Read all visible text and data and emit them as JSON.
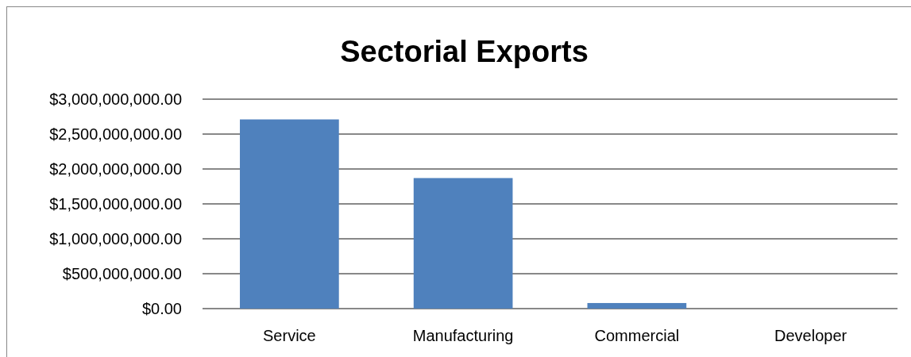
{
  "chart_data": {
    "type": "bar",
    "title": "Sectorial Exports",
    "categories": [
      "Service",
      "Manufacturing",
      "Commercial",
      "Developer"
    ],
    "values": [
      2710000000,
      1870000000,
      80000000,
      0
    ],
    "color": "#4f81bd",
    "ylim": [
      0,
      3000000000
    ],
    "yticks": [
      {
        "value": 0,
        "label": "$0.00"
      },
      {
        "value": 500000000,
        "label": "$500,000,000.00"
      },
      {
        "value": 1000000000,
        "label": "$1,000,000,000.00"
      },
      {
        "value": 1500000000,
        "label": "$1,500,000,000.00"
      },
      {
        "value": 2000000000,
        "label": "$2,000,000,000.00"
      },
      {
        "value": 2500000000,
        "label": "$2,500,000,000.00"
      },
      {
        "value": 3000000000,
        "label": "$3,000,000,000.00"
      }
    ],
    "grid": "y"
  }
}
